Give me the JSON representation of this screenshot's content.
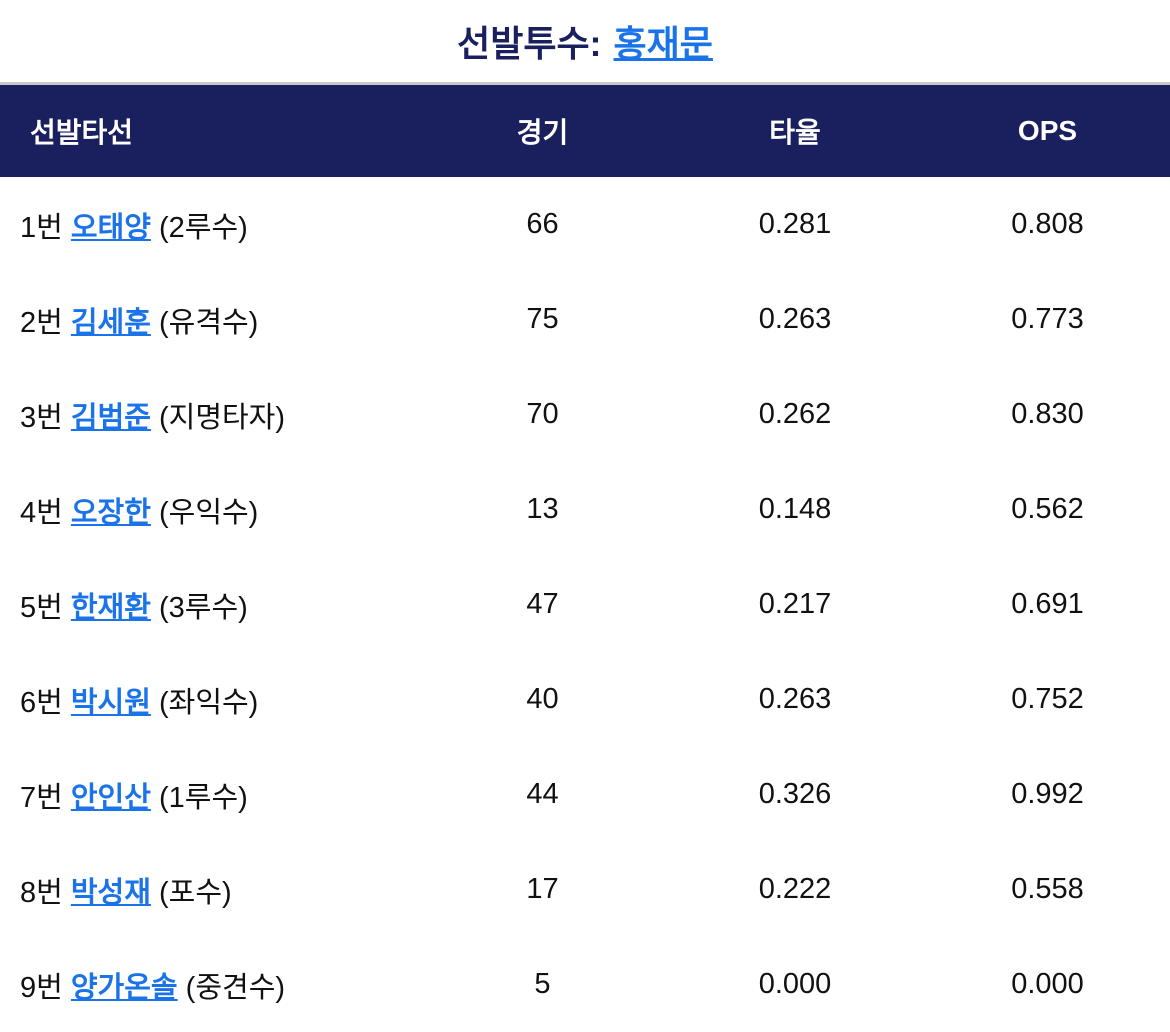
{
  "title": {
    "label": "선발투수:",
    "pitcher": "홍재문"
  },
  "colors": {
    "header_bg": "#1a1f5e",
    "link": "#1a73e8"
  },
  "table": {
    "headers": [
      "선발타선",
      "경기",
      "타율",
      "OPS"
    ],
    "rows": [
      {
        "order": "1번",
        "name": "오태양",
        "position": "(2루수)",
        "games": "66",
        "avg": "0.281",
        "ops": "0.808"
      },
      {
        "order": "2번",
        "name": "김세훈",
        "position": "(유격수)",
        "games": "75",
        "avg": "0.263",
        "ops": "0.773"
      },
      {
        "order": "3번",
        "name": "김범준",
        "position": "(지명타자)",
        "games": "70",
        "avg": "0.262",
        "ops": "0.830"
      },
      {
        "order": "4번",
        "name": "오장한",
        "position": "(우익수)",
        "games": "13",
        "avg": "0.148",
        "ops": "0.562"
      },
      {
        "order": "5번",
        "name": "한재환",
        "position": "(3루수)",
        "games": "47",
        "avg": "0.217",
        "ops": "0.691"
      },
      {
        "order": "6번",
        "name": "박시원",
        "position": "(좌익수)",
        "games": "40",
        "avg": "0.263",
        "ops": "0.752"
      },
      {
        "order": "7번",
        "name": "안인산",
        "position": "(1루수)",
        "games": "44",
        "avg": "0.326",
        "ops": "0.992"
      },
      {
        "order": "8번",
        "name": "박성재",
        "position": "(포수)",
        "games": "17",
        "avg": "0.222",
        "ops": "0.558"
      },
      {
        "order": "9번",
        "name": "양가온솔",
        "position": "(중견수)",
        "games": "5",
        "avg": "0.000",
        "ops": "0.000"
      }
    ]
  }
}
